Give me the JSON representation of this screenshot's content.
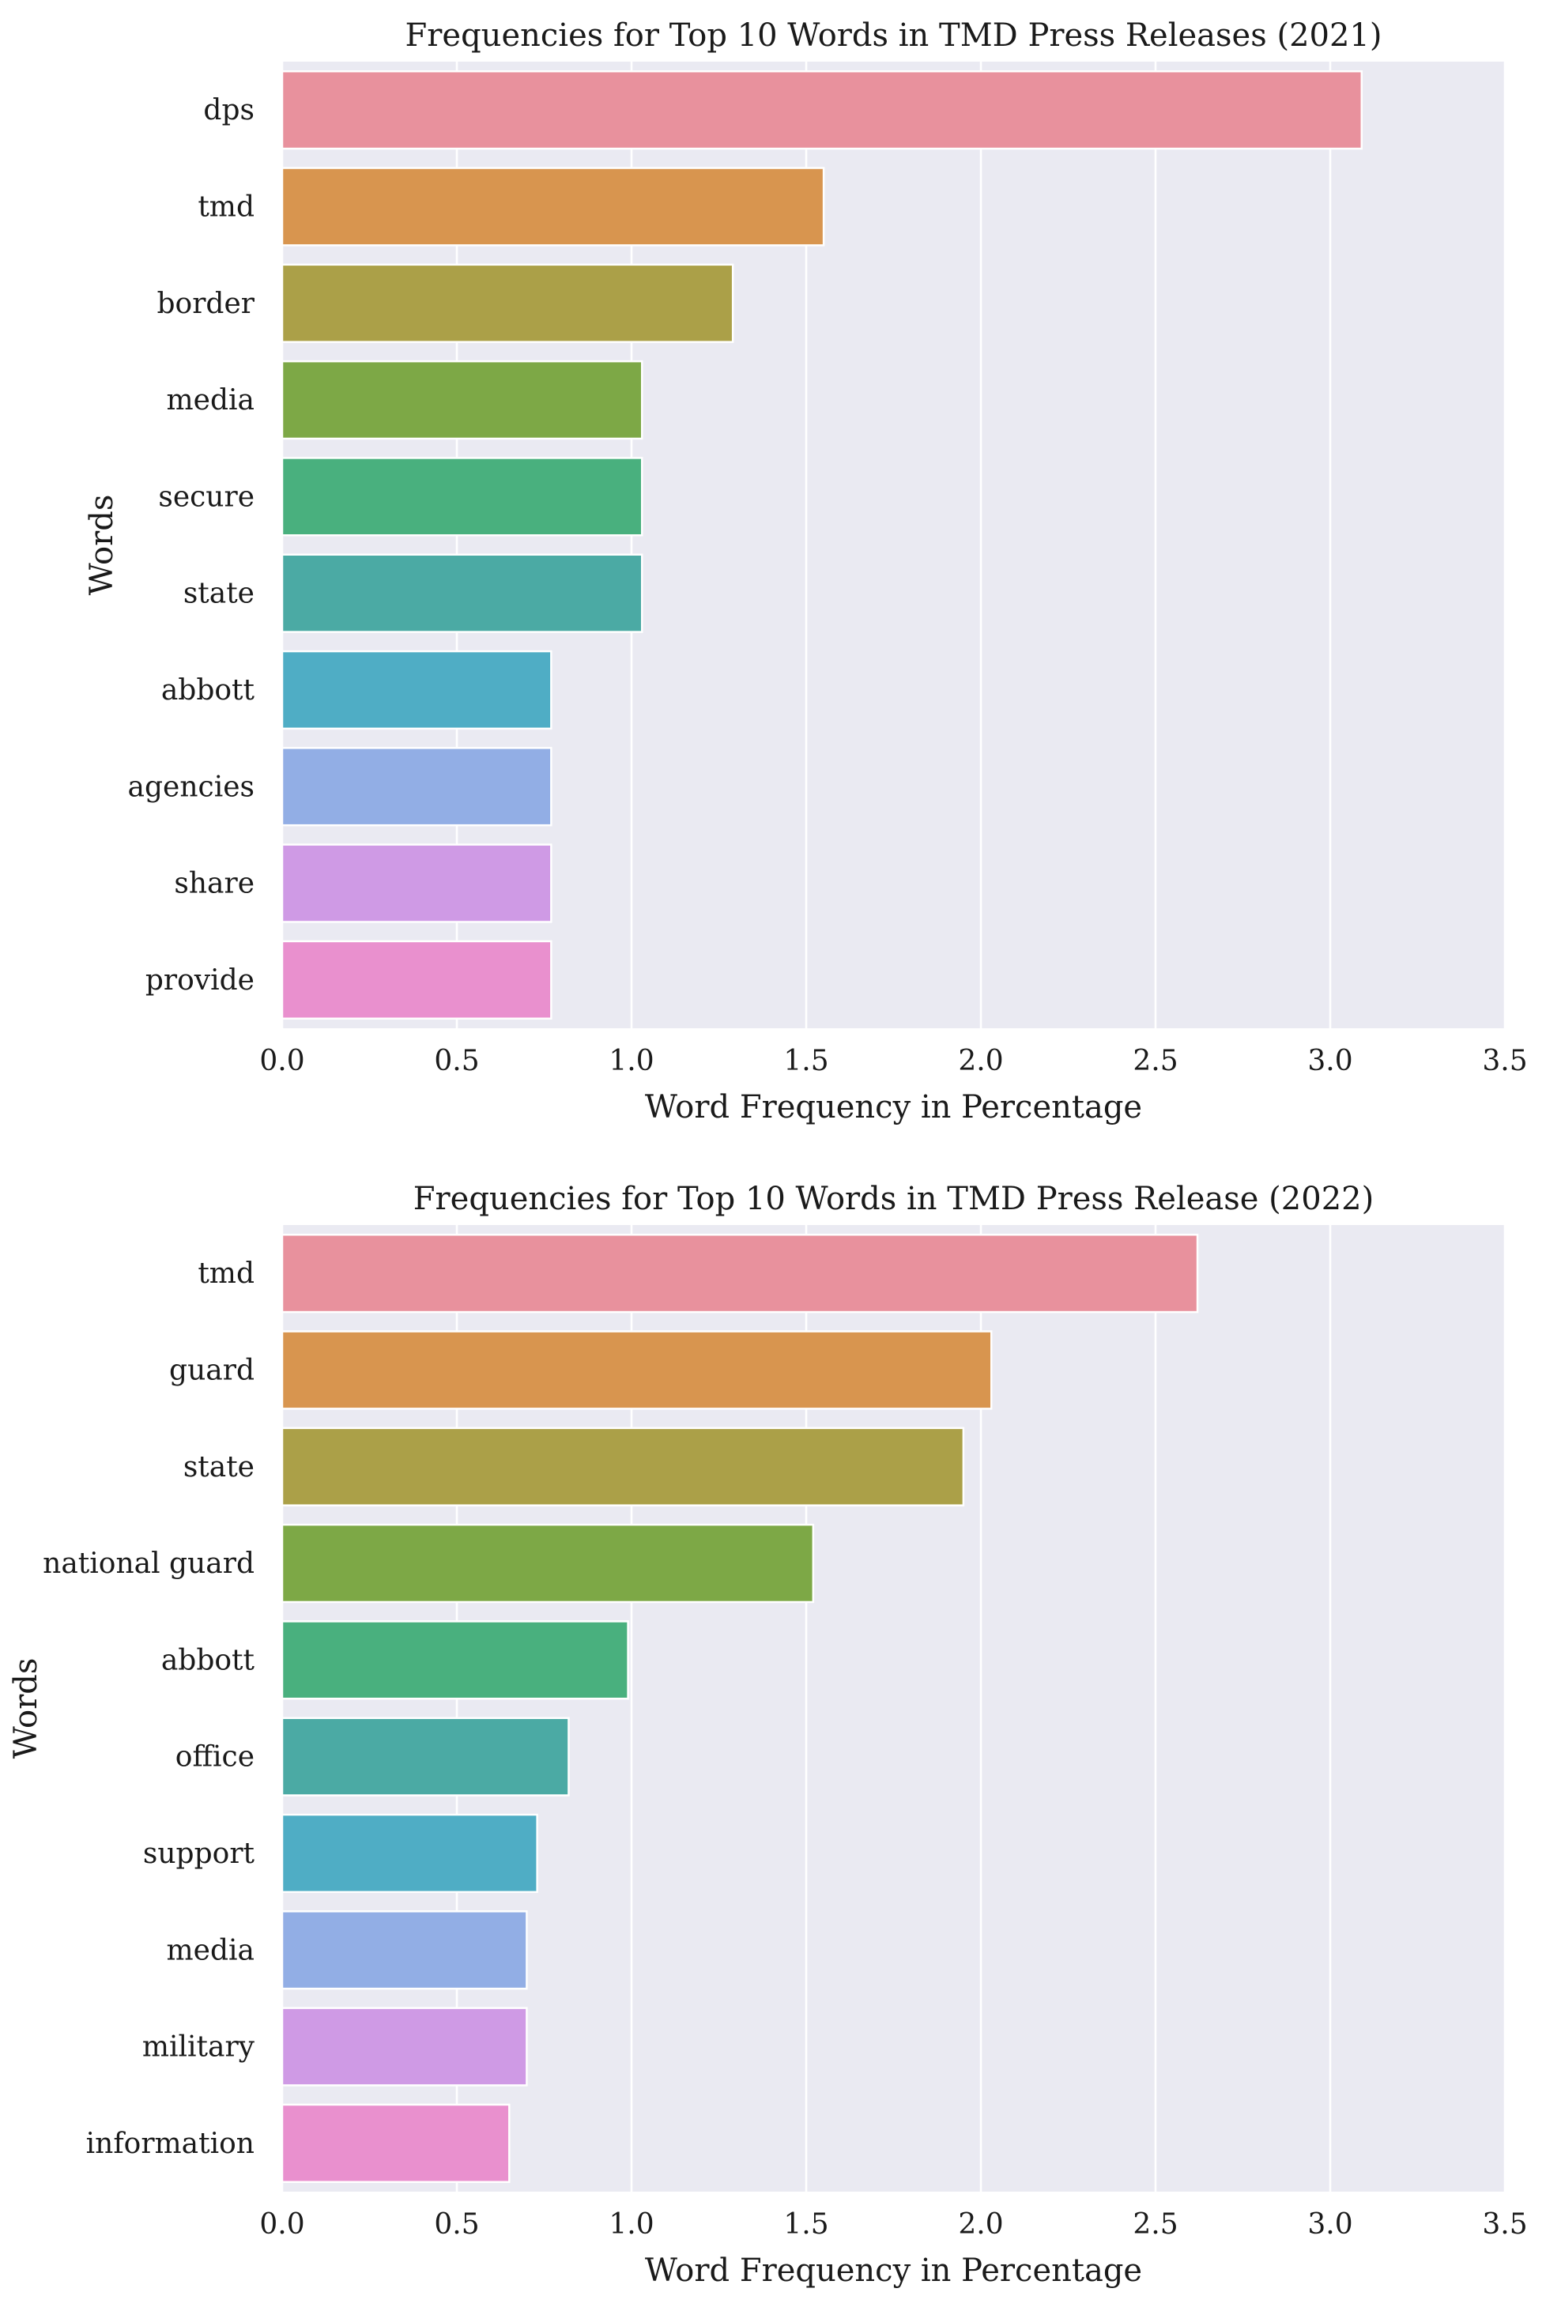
{
  "colors": {
    "background": "#EAEAF2",
    "grid": "#FFFFFF",
    "bar_palette": [
      "#E8919D",
      "#D8954F",
      "#ABA048",
      "#7DA846",
      "#49B07E",
      "#4BAAA4",
      "#4FADC5",
      "#92AEE5",
      "#CF9AE5",
      "#E990CE"
    ]
  },
  "chart_data": [
    {
      "type": "bar",
      "orientation": "horizontal",
      "title": "Frequencies for Top 10 Words in TMD Press Releases (2021)",
      "xlabel": "Word Frequency in Percentage",
      "ylabel": "Words",
      "categories": [
        "dps",
        "tmd",
        "border",
        "media",
        "secure",
        "state",
        "abbott",
        "agencies",
        "share",
        "provide"
      ],
      "values": [
        3.09,
        1.55,
        1.29,
        1.03,
        1.03,
        1.03,
        0.77,
        0.77,
        0.77,
        0.77
      ],
      "xlim": [
        0,
        3.5
      ],
      "xticks": [
        "0.0",
        "0.5",
        "1.0",
        "1.5",
        "2.0",
        "2.5",
        "3.0",
        "3.5"
      ],
      "grid": true,
      "legend": "none"
    },
    {
      "type": "bar",
      "orientation": "horizontal",
      "title": "Frequencies for Top 10 Words in TMD Press Release (2022)",
      "xlabel": "Word Frequency in Percentage",
      "ylabel": "Words",
      "categories": [
        "tmd",
        "guard",
        "state",
        "national guard",
        "abbott",
        "office",
        "support",
        "media",
        "military",
        "information"
      ],
      "values": [
        2.62,
        2.03,
        1.95,
        1.52,
        0.99,
        0.82,
        0.73,
        0.7,
        0.7,
        0.65
      ],
      "xlim": [
        0,
        3.5
      ],
      "xticks": [
        "0.0",
        "0.5",
        "1.0",
        "1.5",
        "2.0",
        "2.5",
        "3.0",
        "3.5"
      ],
      "grid": true,
      "legend": "none"
    }
  ]
}
